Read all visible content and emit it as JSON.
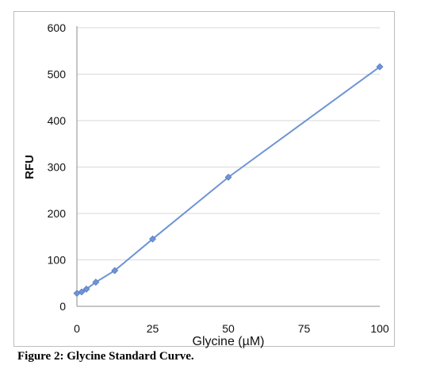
{
  "caption": "Figure 2: Glycine Standard Curve.",
  "chart_data": {
    "type": "scatter",
    "xlabel": "Glycine (µM)",
    "ylabel": "RFU",
    "xlim": [
      0,
      100
    ],
    "ylim": [
      0,
      600
    ],
    "xticks": [
      0,
      25,
      50,
      75,
      100
    ],
    "yticks": [
      0,
      100,
      200,
      300,
      400,
      500,
      600
    ],
    "grid": "horizontal",
    "colors": {
      "series": "#6f94d6",
      "line": "#6f94d6",
      "grid": "#d9d9d9",
      "axis": "#8c8c8c"
    },
    "series": [
      {
        "x": [
          0,
          1.56,
          3.13,
          6.25,
          12.5,
          25,
          50,
          100
        ],
        "y": [
          28,
          31,
          37,
          52,
          77,
          145,
          278,
          516
        ]
      }
    ]
  }
}
